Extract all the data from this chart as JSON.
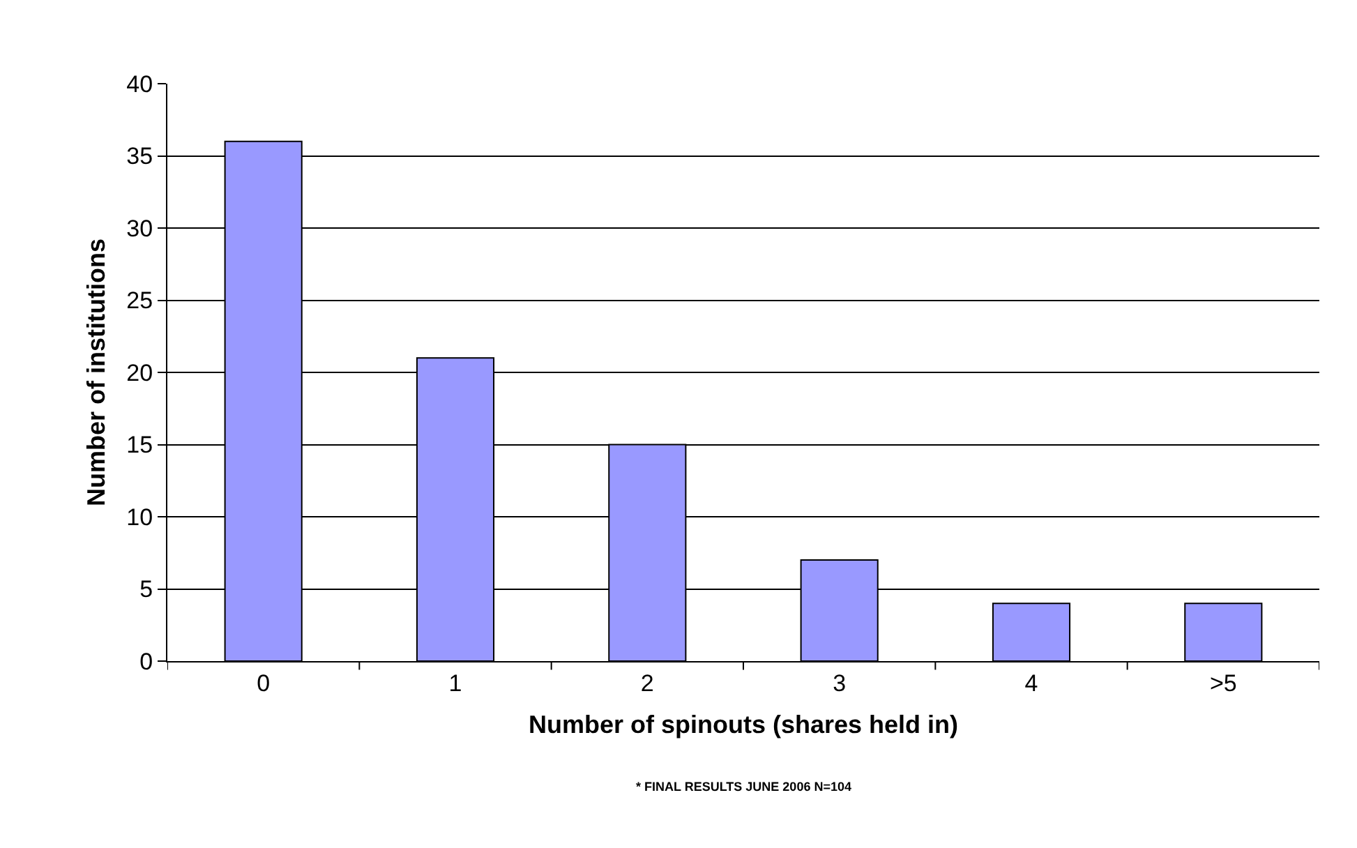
{
  "chart_data": {
    "type": "bar",
    "xlabel": "Number of spinouts (shares held in)",
    "ylabel": "Number of institutions",
    "categories": [
      "0",
      "1",
      "2",
      "3",
      "4",
      ">5"
    ],
    "values": [
      36,
      21,
      15,
      7,
      4,
      4
    ],
    "color": "#9999ff",
    "ylim": [
      0,
      40
    ],
    "yticks": [
      0,
      5,
      10,
      15,
      20,
      25,
      30,
      35,
      40
    ],
    "grid": "y",
    "annotations": [
      "* FINAL RESULTS JUNE 2006 N=104"
    ]
  }
}
